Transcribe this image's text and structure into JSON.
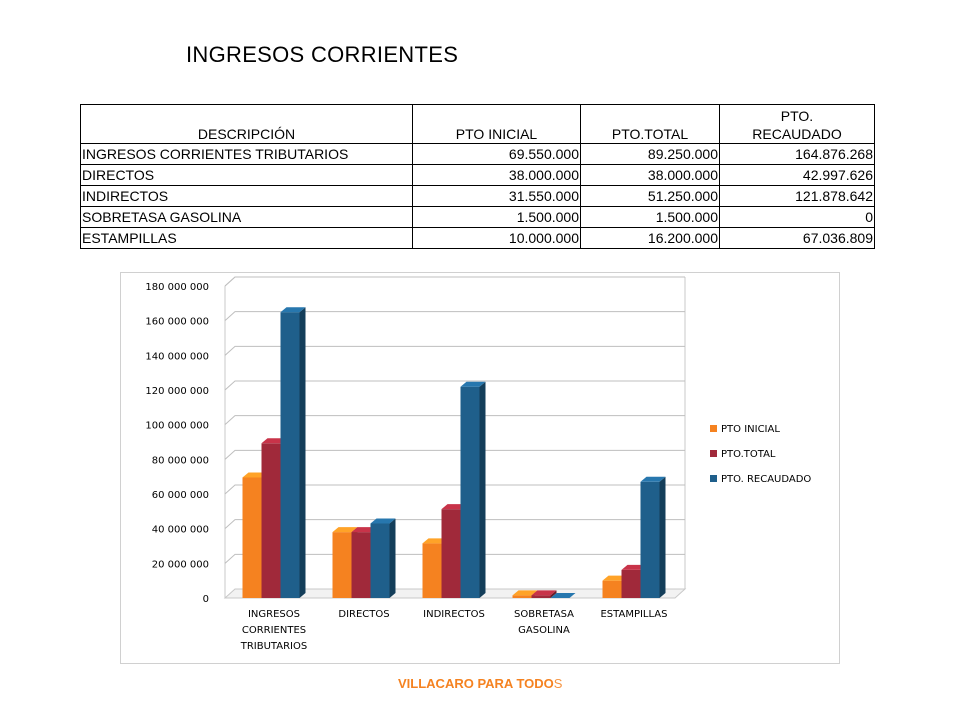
{
  "title": "INGRESOS CORRIENTES",
  "table": {
    "headers": [
      "DESCRIPCIÓN",
      "PTO INICIAL",
      "PTO.TOTAL",
      "PTO. RECAUDADO"
    ],
    "rows": [
      [
        "INGRESOS  CORRIENTES  TRIBUTARIOS",
        "69.550.000",
        "89.250.000",
        "164.876.268"
      ],
      [
        "DIRECTOS",
        "38.000.000",
        "38.000.000",
        "42.997.626"
      ],
      [
        "INDIRECTOS",
        "31.550.000",
        "51.250.000",
        "121.878.642"
      ],
      [
        "SOBRETASA  GASOLINA",
        "1.500.000",
        "1.500.000",
        "0"
      ],
      [
        "ESTAMPILLAS",
        "10.000.000",
        "16.200.000",
        "67.036.809"
      ]
    ]
  },
  "chart_data": {
    "type": "bar",
    "categories": [
      [
        "INGRESOS",
        "CORRIENTES",
        "TRIBUTARIOS"
      ],
      [
        "DIRECTOS"
      ],
      [
        "INDIRECTOS"
      ],
      [
        "SOBRETASA",
        "GASOLINA"
      ],
      [
        "ESTAMPILLAS"
      ]
    ],
    "series": [
      {
        "name": "PTO INICIAL",
        "color": "#F58220",
        "values": [
          69550000,
          38000000,
          31550000,
          1500000,
          10000000
        ]
      },
      {
        "name": "PTO.TOTAL",
        "color": "#A0293A",
        "values": [
          89250000,
          38000000,
          51250000,
          1500000,
          16200000
        ]
      },
      {
        "name": "PTO. RECAUDADO",
        "color": "#1F5F8B",
        "values": [
          164876268,
          42997626,
          121878642,
          0,
          67036809
        ]
      }
    ],
    "ylim": [
      0,
      180000000
    ],
    "yticks": [
      0,
      20000000,
      40000000,
      60000000,
      80000000,
      100000000,
      120000000,
      140000000,
      160000000,
      180000000
    ],
    "ytick_labels": [
      "0",
      "20 000 000",
      "40 000 000",
      "60 000 000",
      "80 000 000",
      "100 000 000",
      "120 000 000",
      "140 000 000",
      "160 000 000",
      "180 000 000"
    ],
    "grid": true,
    "legend": "right",
    "style": "3d-clustered-column"
  },
  "footer": {
    "text": "VILLACARO PARA TODO",
    "tail": "S"
  }
}
